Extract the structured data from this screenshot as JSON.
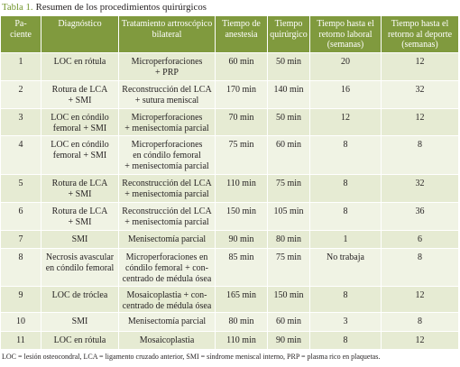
{
  "caption": {
    "label": "Tabla 1.",
    "title": "Resumen de los procedimientos quirúrgicos"
  },
  "table": {
    "columns": [
      "Pa-\nciente",
      "Diagnóstico",
      "Tratamiento artroscópico\nbilateral",
      "Tiempo de\nanestesia",
      "Tiempo\nquirúrgico",
      "Tiempo hasta el\nretorno laboral\n(semanas)",
      "Tiempo hasta el\nretorno al deporte\n(semanas)"
    ],
    "rows": [
      [
        "1",
        "LOC en rótula",
        "Microperforaciones\n+ PRP",
        "60 min",
        "50 min",
        "20",
        "12"
      ],
      [
        "2",
        "Rotura de LCA\n+ SMI",
        "Reconstrucción del LCA\n+ sutura meniscal",
        "170 min",
        "140 min",
        "16",
        "32"
      ],
      [
        "3",
        "LOC en cóndilo\nfemoral + SMI",
        "Microperforaciones\n+ menisectomía parcial",
        "70 min",
        "50 min",
        "12",
        "12"
      ],
      [
        "4",
        "LOC en cóndilo\nfemoral + SMI",
        "Microperforaciones\nen cóndilo femoral\n+ menisectomía parcial",
        "75 min",
        "60 min",
        "8",
        "8"
      ],
      [
        "5",
        "Rotura de LCA\n+ SMI",
        "Reconstrucción del LCA\n+ menisectomía parcial",
        "110 min",
        "75 min",
        "8",
        "32"
      ],
      [
        "6",
        "Rotura de LCA\n+ SMI",
        "Reconstrucción del LCA\n+ menisectomía parcial",
        "150 min",
        "105 min",
        "8",
        "36"
      ],
      [
        "7",
        "SMI",
        "Menisectomía parcial",
        "90 min",
        "80 min",
        "1",
        "6"
      ],
      [
        "8",
        "Necrosis avascular\nen cóndilo femoral",
        "Microperforaciones en\ncóndilo femoral + con-\ncentrado de médula ósea",
        "85 min",
        "75 min",
        "No trabaja",
        "8"
      ],
      [
        "9",
        "LOC de tróclea",
        "Mosaicoplastia + con-\ncentrado de médula ósea",
        "165 min",
        "150 min",
        "8",
        "12"
      ],
      [
        "10",
        "SMI",
        "Menisectomía parcial",
        "80 min",
        "60 min",
        "3",
        "8"
      ],
      [
        "11",
        "LOC en rótula",
        "Mosaicoplastia",
        "110 min",
        "90 min",
        "8",
        "12"
      ]
    ]
  },
  "footnote": "LOC = lesión osteocondral, LCA = ligamento cruzado anterior, SMI = síndrome meniscal interno, PRP = plasma rico en plaquetas.",
  "colors": {
    "accent": "#809a3e",
    "label": "#74972f",
    "header_text": "#ffffff",
    "row_odd": "#e6ebd3",
    "row_even": "#f0f3e4",
    "text": "#231f20"
  }
}
